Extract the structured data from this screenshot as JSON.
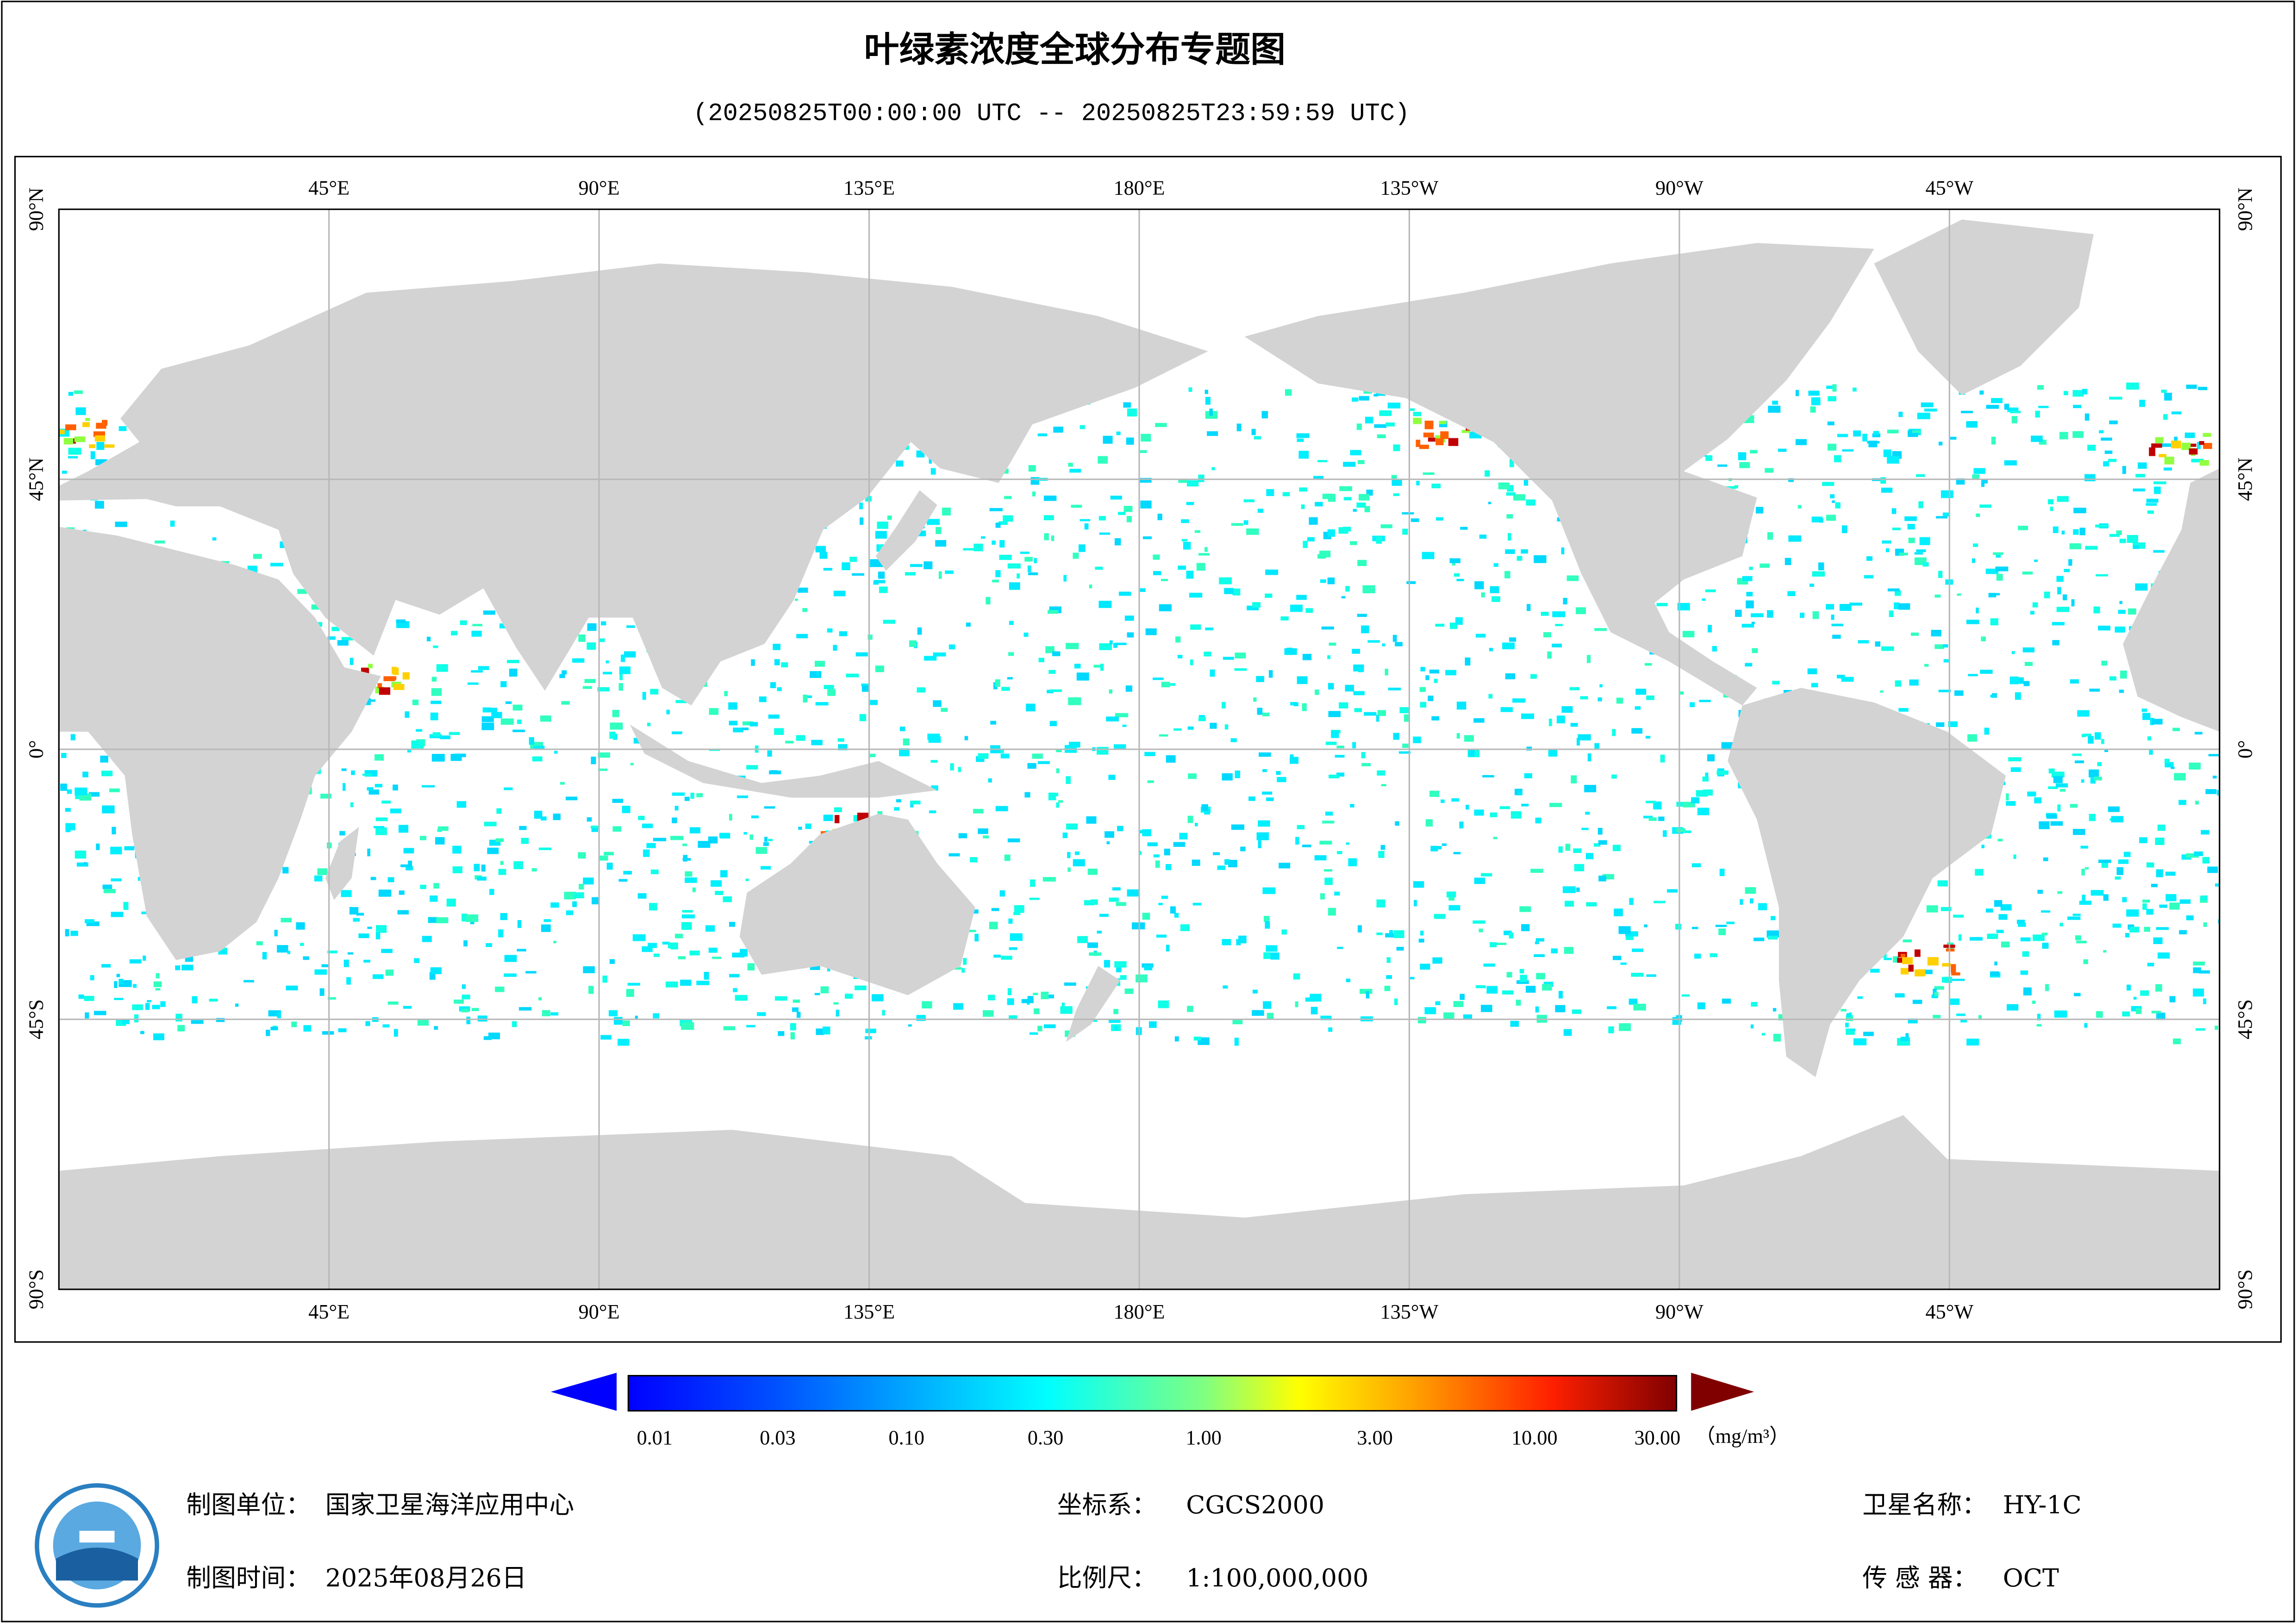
{
  "title": "叶绿素浓度全球分布专题图",
  "subtitle": "(20250825T00:00:00 UTC -- 20250825T23:59:59 UTC)",
  "map": {
    "lon_labels": [
      "45°E",
      "90°E",
      "135°E",
      "180°E",
      "135°W",
      "90°W",
      "45°W"
    ],
    "lat_labels": [
      "90°N",
      "45°N",
      "0°",
      "45°S",
      "90°S"
    ]
  },
  "colorbar": {
    "ticks": [
      "0.01",
      "0.03",
      "0.10",
      "0.30",
      "1.00",
      "3.00",
      "10.00",
      "30.00"
    ],
    "unit": "（mg/m³）"
  },
  "footer": {
    "unit_label": "制图单位：",
    "unit_value": "国家卫星海洋应用中心",
    "time_label": "制图时间：",
    "time_value": "2025年08月26日",
    "crs_label": "坐标系：",
    "crs_value": "CGCS2000",
    "scale_label": "比例尺：",
    "scale_value": "1:100,000,000",
    "satellite_label": "卫星名称：",
    "satellite_value": "HY-1C",
    "sensor_label": "传 感 器：",
    "sensor_value": "OCT"
  }
}
